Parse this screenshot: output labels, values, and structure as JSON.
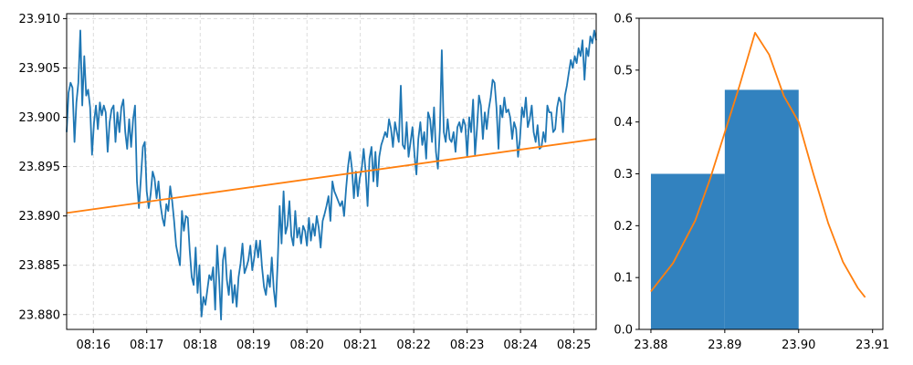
{
  "colors": {
    "series": "#1f77b4",
    "trend": "#ff7f0e",
    "bars": "#3282bf",
    "grid": "#d3d3d3"
  },
  "chart_data": [
    {
      "type": "line",
      "title": "",
      "xlabel": "",
      "ylabel": "",
      "grid": true,
      "xlim": [
        "08:15:30",
        "08:25:25"
      ],
      "ylim": [
        23.8785,
        23.9105
      ],
      "x_ticks": [
        "08:16",
        "08:17",
        "08:18",
        "08:19",
        "08:20",
        "08:21",
        "08:22",
        "08:23",
        "08:24",
        "08:25"
      ],
      "y_ticks": [
        "23.880",
        "23.885",
        "23.890",
        "23.895",
        "23.900",
        "23.905",
        "23.910"
      ],
      "series": [
        {
          "role": "price",
          "x_start": "08:15:30",
          "x_end": "08:25:25",
          "values": [
            23.8985,
            23.9025,
            23.9035,
            23.903,
            23.8975,
            23.9015,
            23.9035,
            23.9088,
            23.9012,
            23.9062,
            23.9022,
            23.9028,
            23.901,
            23.8962,
            23.8995,
            23.9012,
            23.8988,
            23.9015,
            23.9002,
            23.9012,
            23.9005,
            23.8965,
            23.8995,
            23.9008,
            23.9012,
            23.8975,
            23.9005,
            23.8985,
            23.901,
            23.9018,
            23.8985,
            23.8968,
            23.8998,
            23.897,
            23.8998,
            23.9012,
            23.8935,
            23.8908,
            23.8938,
            23.897,
            23.8975,
            23.8925,
            23.8908,
            23.8922,
            23.8945,
            23.8938,
            23.8918,
            23.8935,
            23.8912,
            23.8898,
            23.889,
            23.8912,
            23.8905,
            23.893,
            23.8915,
            23.8895,
            23.887,
            23.886,
            23.885,
            23.8905,
            23.8885,
            23.89,
            23.8898,
            23.8865,
            23.8838,
            23.883,
            23.8868,
            23.8822,
            23.885,
            23.8798,
            23.8818,
            23.881,
            23.8825,
            23.884,
            23.8835,
            23.8848,
            23.8805,
            23.887,
            23.8838,
            23.8795,
            23.8855,
            23.8868,
            23.8835,
            23.882,
            23.8845,
            23.8812,
            23.883,
            23.8808,
            23.8838,
            23.8852,
            23.8872,
            23.8842,
            23.8848,
            23.8855,
            23.887,
            23.8845,
            23.8858,
            23.8875,
            23.8858,
            23.8875,
            23.8848,
            23.8828,
            23.882,
            23.884,
            23.8828,
            23.8858,
            23.8825,
            23.8808,
            23.8852,
            23.891,
            23.8872,
            23.8925,
            23.8882,
            23.889,
            23.8915,
            23.888,
            23.887,
            23.8905,
            23.8878,
            23.8888,
            23.8872,
            23.889,
            23.8885,
            23.887,
            23.8898,
            23.8875,
            23.8892,
            23.888,
            23.89,
            23.8888,
            23.8868,
            23.8895,
            23.8902,
            23.891,
            23.892,
            23.8895,
            23.8935,
            23.8925,
            23.892,
            23.8915,
            23.891,
            23.8915,
            23.89,
            23.8928,
            23.895,
            23.8965,
            23.8948,
            23.8918,
            23.8945,
            23.892,
            23.8938,
            23.8948,
            23.8968,
            23.8945,
            23.891,
            23.8958,
            23.897,
            23.8935,
            23.8965,
            23.893,
            23.896,
            23.8972,
            23.8978,
            23.8985,
            23.898,
            23.8998,
            23.8988,
            23.897,
            23.8995,
            23.8985,
            23.8975,
            23.9032,
            23.8972,
            23.8968,
            23.8995,
            23.896,
            23.8975,
            23.899,
            23.8962,
            23.8942,
            23.8978,
            23.8995,
            23.8972,
            23.8985,
            23.8958,
            23.9005,
            23.8998,
            23.8975,
            23.901,
            23.8965,
            23.8948,
            23.8988,
            23.9068,
            23.8985,
            23.8975,
            23.8998,
            23.8978,
            23.8975,
            23.8985,
            23.8965,
            23.899,
            23.8995,
            23.8985,
            23.8998,
            23.8992,
            23.896,
            23.9,
            23.8985,
            23.9018,
            23.8962,
            23.8988,
            23.9022,
            23.9012,
            23.8978,
            23.9005,
            23.8988,
            23.9008,
            23.902,
            23.9038,
            23.9035,
            23.901,
            23.8968,
            23.9012,
            23.9,
            23.902,
            23.9005,
            23.9008,
            23.9,
            23.8978,
            23.8995,
            23.8988,
            23.896,
            23.8978,
            23.901,
            23.9,
            23.902,
            23.899,
            23.8998,
            23.9012,
            23.8985,
            23.8975,
            23.8992,
            23.8968,
            23.897,
            23.8985,
            23.8975,
            23.9012,
            23.9005,
            23.9005,
            23.8985,
            23.8988,
            23.901,
            23.902,
            23.9015,
            23.8985,
            23.9022,
            23.9032,
            23.9045,
            23.9058,
            23.905,
            23.9062,
            23.9055,
            23.907,
            23.9062,
            23.9078,
            23.9038,
            23.907,
            23.9062,
            23.9082,
            23.9075,
            23.9088,
            23.9078
          ]
        },
        {
          "role": "trend",
          "x": [
            "08:15:30",
            "08:25:25"
          ],
          "values": [
            23.8903,
            23.8978
          ]
        }
      ]
    },
    {
      "type": "bar",
      "subtype": "histogram-with-density",
      "title": "",
      "xlabel": "",
      "ylabel": "",
      "grid": false,
      "xlim": [
        23.8784,
        23.9114
      ],
      "ylim": [
        0,
        0.6
      ],
      "x_ticks": [
        "23.88",
        "23.89",
        "23.90",
        "23.91"
      ],
      "y_ticks": [
        "0.0",
        "0.1",
        "0.2",
        "0.3",
        "0.4",
        "0.5",
        "0.6"
      ],
      "bins": [
        {
          "from": 23.88,
          "to": 23.89,
          "value": 0.3
        },
        {
          "from": 23.89,
          "to": 23.9,
          "value": 0.462
        }
      ],
      "density_curve": {
        "x": [
          23.88,
          23.883,
          23.886,
          23.888,
          23.89,
          23.892,
          23.8941,
          23.896,
          23.898,
          23.9,
          23.902,
          23.904,
          23.906,
          23.908,
          23.909
        ],
        "y": [
          0.073,
          0.128,
          0.21,
          0.29,
          0.38,
          0.47,
          0.572,
          0.53,
          0.45,
          0.4,
          0.3,
          0.205,
          0.13,
          0.08,
          0.062
        ]
      }
    }
  ]
}
